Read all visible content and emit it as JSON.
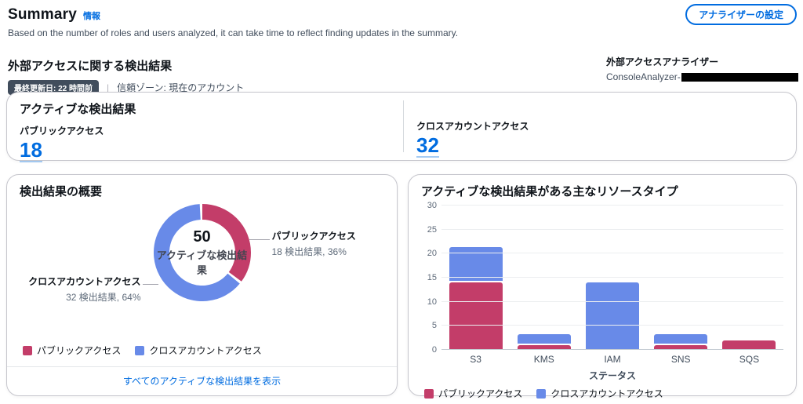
{
  "header": {
    "title": "Summary",
    "info_link": "情報",
    "subtitle": "Based on the number of roles and users analyzed, it can take time to reflect finding updates in the summary.",
    "settings_button": "アナライザーの設定"
  },
  "section": {
    "title": "外部アクセスに関する検出結果",
    "badge": "最終更新日: 22 時間前",
    "separator": "|",
    "trust_zone": "信頼ゾーン: 現在のアカウント",
    "analyzer_label": "外部アクセスアナライザー",
    "analyzer_name": "ConsoleAnalyzer-"
  },
  "metrics": {
    "title": "アクティブな検出結果",
    "items": [
      {
        "label": "パブリックアクセス",
        "value": "18"
      },
      {
        "label": "クロスアカウントアクセス",
        "value": "32"
      }
    ]
  },
  "colors": {
    "public": "#c33d69",
    "cross_account": "#688ae8",
    "link": "#006ce0"
  },
  "chart_data": [
    {
      "type": "pie",
      "title": "検出結果の概要",
      "center_value": "50",
      "center_label": "アクティブな検出結果",
      "slices": [
        {
          "label": "パブリックアクセス",
          "value": 18,
          "percent": 36,
          "callout": "18 検出結果, 36%",
          "color": "#c33d69"
        },
        {
          "label": "クロスアカウントアクセス",
          "value": 32,
          "percent": 64,
          "callout": "32 検出結果, 64%",
          "color": "#688ae8"
        }
      ],
      "legend": [
        "パブリックアクセス",
        "クロスアカウントアクセス"
      ],
      "legend_position": "bottom-left",
      "footer_link": "すべてのアクティブな検出結果を表示"
    },
    {
      "type": "bar",
      "stacked": true,
      "title": "アクティブな検出結果がある主なリソースタイプ",
      "categories": [
        "S3",
        "KMS",
        "IAM",
        "SNS",
        "SQS"
      ],
      "series": [
        {
          "name": "パブリックアクセス",
          "color": "#c33d69",
          "values": [
            14,
            1,
            0,
            1,
            2
          ]
        },
        {
          "name": "クロスアカウントアクセス",
          "color": "#688ae8",
          "values": [
            7,
            2,
            14,
            2,
            0
          ]
        }
      ],
      "xlabel": "ステータス",
      "ylabel": "",
      "ylim": [
        0,
        30
      ],
      "yticks": [
        0,
        5,
        10,
        15,
        20,
        25,
        30
      ],
      "grid": true,
      "legend": [
        "パブリックアクセス",
        "クロスアカウントアクセス"
      ],
      "legend_position": "bottom-left"
    }
  ]
}
